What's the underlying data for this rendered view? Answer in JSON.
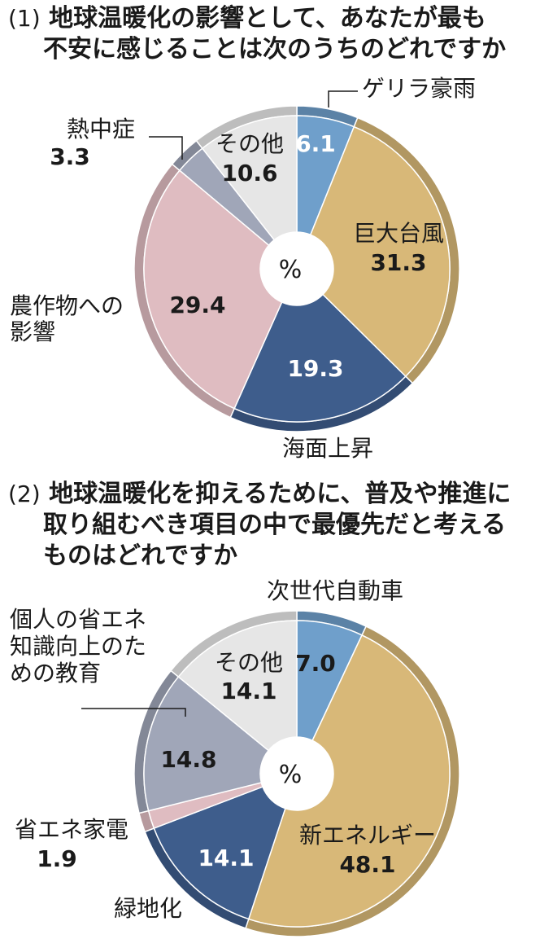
{
  "chart_data": [
    {
      "type": "pie",
      "number": "(1)",
      "title_lines": [
        "地球温暖化の影響として、あなたが最も",
        "不安に感じることは次のうちのどれですか"
      ],
      "center_label": "%",
      "slices": [
        {
          "name": "ゲリラ豪雨",
          "value": 6.1,
          "color": "#6f9fcb"
        },
        {
          "name": "巨大台風",
          "value": 31.3,
          "color": "#d8b878"
        },
        {
          "name": "海面上昇",
          "value": 19.3,
          "color": "#3e5d8c"
        },
        {
          "name": "農作物への影響",
          "name_lines": [
            "農作物への",
            "影響"
          ],
          "value": 29.4,
          "color": "#dfbcc1"
        },
        {
          "name": "熱中症",
          "value": 3.3,
          "color": "#a0a6b8"
        },
        {
          "name": "その他",
          "value": 10.6,
          "color": "#e6e6e6"
        }
      ]
    },
    {
      "type": "pie",
      "number": "(2)",
      "title_lines": [
        "地球温暖化を抑えるために、普及や推進に",
        "取り組むべき項目の中で最優先だと考える",
        "ものはどれですか"
      ],
      "center_label": "%",
      "slices": [
        {
          "name": "次世代自動車",
          "value": 7.0,
          "color": "#6f9fcb"
        },
        {
          "name": "新エネルギー",
          "value": 48.1,
          "color": "#d8b878"
        },
        {
          "name": "緑地化",
          "value": 14.1,
          "color": "#3e5d8c"
        },
        {
          "name": "省エネ家電",
          "value": 1.9,
          "color": "#dfbcc1"
        },
        {
          "name": "個人の省エネ知識向上のための教育",
          "name_lines": [
            "個人の省エネ",
            "知識向上のた",
            "めの教育"
          ],
          "value": 14.8,
          "color": "#a0a6b8"
        },
        {
          "name": "その他",
          "value": 14.1,
          "color": "#e6e6e6"
        }
      ]
    }
  ]
}
